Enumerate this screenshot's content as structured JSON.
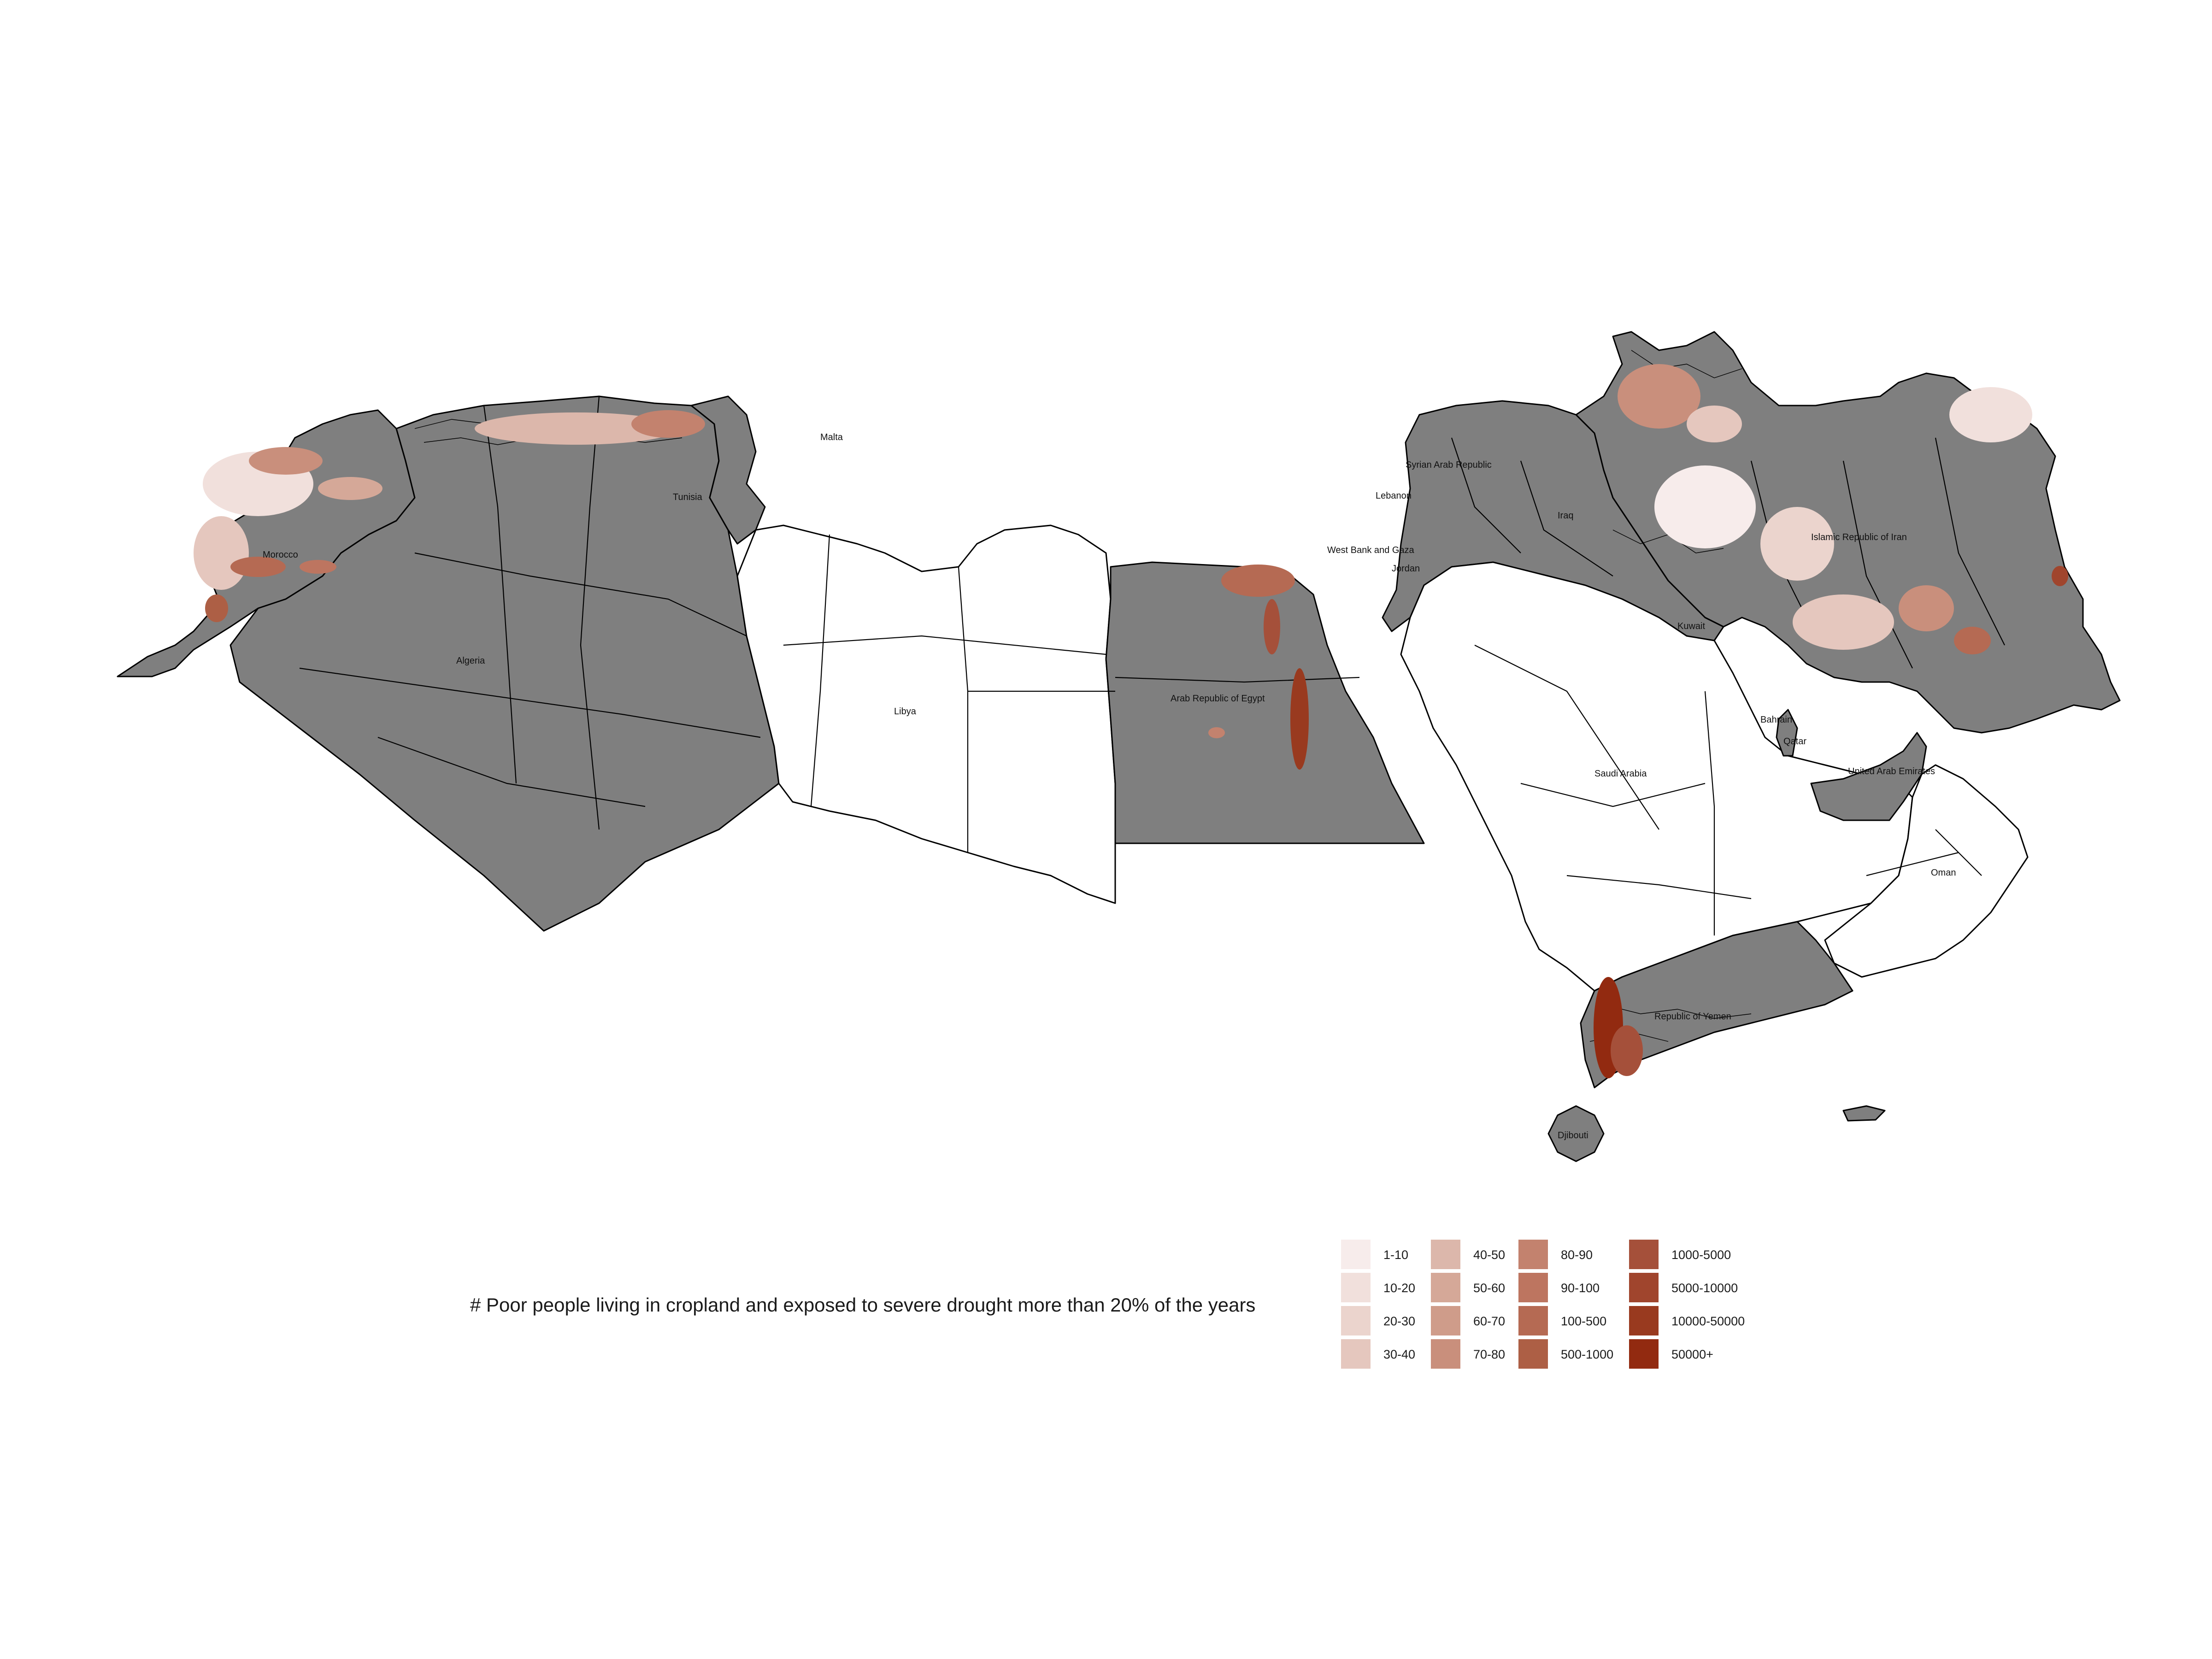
{
  "map": {
    "country_labels": [
      {
        "id": "malta",
        "text": "Malta"
      },
      {
        "id": "tunisia",
        "text": "Tunisia"
      },
      {
        "id": "morocco",
        "text": "Morocco"
      },
      {
        "id": "algeria",
        "text": "Algeria"
      },
      {
        "id": "libya",
        "text": "Libya"
      },
      {
        "id": "egypt",
        "text": "Arab Republic of Egypt"
      },
      {
        "id": "syria",
        "text": "Syrian Arab Republic"
      },
      {
        "id": "lebanon",
        "text": "Lebanon"
      },
      {
        "id": "iraq",
        "text": "Iraq"
      },
      {
        "id": "iran",
        "text": "Islamic Republic of Iran"
      },
      {
        "id": "westbank",
        "text": "West Bank and Gaza"
      },
      {
        "id": "jordan",
        "text": "Jordan"
      },
      {
        "id": "kuwait",
        "text": "Kuwait"
      },
      {
        "id": "bahrain",
        "text": "Bahrain"
      },
      {
        "id": "qatar",
        "text": "Qatar"
      },
      {
        "id": "uae",
        "text": "United Arab Emirates"
      },
      {
        "id": "saudi",
        "text": "Saudi Arabia"
      },
      {
        "id": "oman",
        "text": "Oman"
      },
      {
        "id": "yemen",
        "text": "Republic of Yemen"
      },
      {
        "id": "djibouti",
        "text": "Djibouti"
      }
    ],
    "no_data_color": "#7f7f7f",
    "excluded_color": "#ffffff"
  },
  "legend": {
    "title": "# Poor people living in cropland and exposed to severe drought more than 20% of the years",
    "items": [
      {
        "label": "1-10",
        "color": "#f7eceb"
      },
      {
        "label": "10-20",
        "color": "#f1e0dc"
      },
      {
        "label": "20-30",
        "color": "#ebd4cd"
      },
      {
        "label": "30-40",
        "color": "#e5c7be"
      },
      {
        "label": "40-50",
        "color": "#dcb7ab"
      },
      {
        "label": "50-60",
        "color": "#d5a898"
      },
      {
        "label": "60-70",
        "color": "#cf9c8a"
      },
      {
        "label": "70-80",
        "color": "#c98f7c"
      },
      {
        "label": "80-90",
        "color": "#c3826e"
      },
      {
        "label": "90-100",
        "color": "#bd7560"
      },
      {
        "label": "100-500",
        "color": "#b56a53"
      },
      {
        "label": "500-1000",
        "color": "#ad5f45"
      },
      {
        "label": "1000-5000",
        "color": "#a5503a"
      },
      {
        "label": "5000-10000",
        "color": "#a0452d"
      },
      {
        "label": "10000-50000",
        "color": "#993a1f"
      },
      {
        "label": "50000+",
        "color": "#922a10"
      }
    ]
  }
}
